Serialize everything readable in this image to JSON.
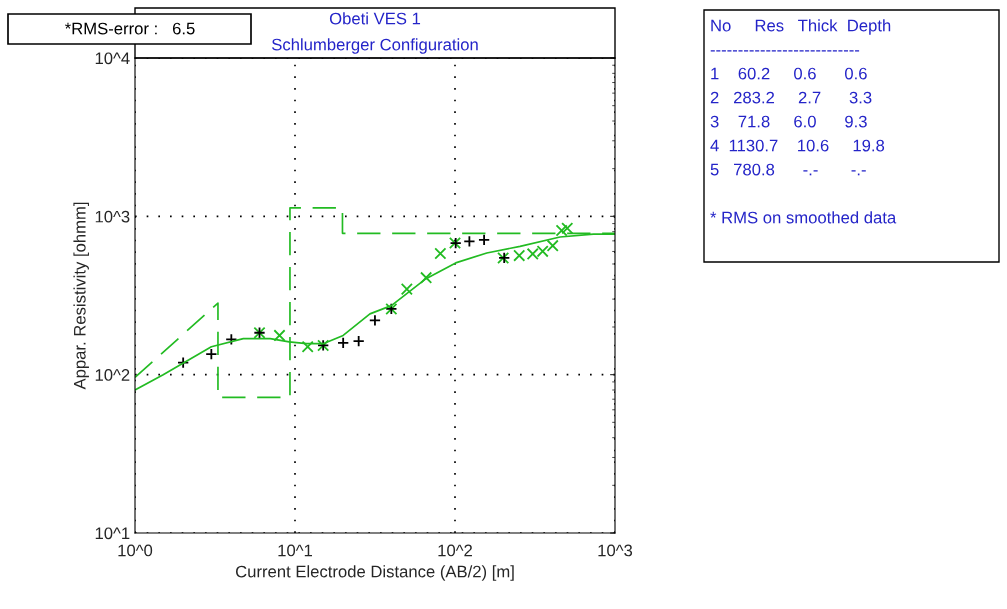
{
  "chart_data": {
    "type": "scatter",
    "title": "Obeti VES 1",
    "subtitle": "Schlumberger Configuration",
    "xlabel": "Current Electrode Distance (AB/2) [m]",
    "ylabel": "Appar. Resistivity [ohmm]",
    "log": "xy",
    "xlim": [
      1,
      1000
    ],
    "ylim": [
      10,
      10000
    ],
    "xticks": [
      {
        "value": 1,
        "label": "10^0"
      },
      {
        "value": 10,
        "label": "10^1"
      },
      {
        "value": 100,
        "label": "10^2"
      },
      {
        "value": 1000,
        "label": "10^3"
      }
    ],
    "yticks": [
      {
        "value": 10,
        "label": "10^1"
      },
      {
        "value": 100,
        "label": "10^2"
      },
      {
        "value": 1000,
        "label": "10^3"
      },
      {
        "value": 10000,
        "label": "10^4"
      }
    ],
    "grid": true,
    "series": [
      {
        "type": "line",
        "color": "#22bb22",
        "line_style": "dashed",
        "marker": "none",
        "x": [
          1,
          3.3,
          3.3,
          9.3,
          9.3,
          19.8,
          19.8,
          1000
        ],
        "values": [
          96,
          283.2,
          71.8,
          71.8,
          1130.7,
          1130.7,
          780.8,
          780.8
        ]
      },
      {
        "type": "line",
        "color": "#22bb22",
        "line_style": "solid",
        "marker": "none",
        "x": [
          1,
          1.5,
          3,
          4.75,
          7,
          9.2,
          11.8,
          15,
          20,
          29.4,
          40,
          65,
          101,
          158,
          255,
          453,
          733,
          1000
        ],
        "values": [
          80,
          100,
          150,
          169,
          169,
          161,
          157,
          157,
          177,
          242,
          273,
          400,
          508,
          587,
          646,
          740,
          772,
          772
        ]
      },
      {
        "color": "#22bb22",
        "marker": "x",
        "x": [
          6,
          8,
          12,
          15,
          40,
          50,
          66,
          81,
          100,
          200,
          252,
          306,
          353,
          408,
          464,
          503
        ],
        "values": [
          184,
          177,
          150,
          153,
          260,
          347,
          410,
          582,
          678,
          546,
          565,
          579,
          601,
          653,
          814,
          841
        ]
      },
      {
        "color": "#000000",
        "marker": "cross",
        "x": [
          2,
          3,
          4,
          6,
          15,
          20,
          25,
          31.6,
          40,
          101,
          123,
          152,
          203
        ],
        "values": [
          119,
          135,
          167,
          184,
          153,
          159,
          163,
          220,
          260,
          678,
          695,
          711,
          546
        ]
      }
    ],
    "annotations": [
      "*RMS-error :   6.5",
      "No     Res   Thick  Depth",
      "---------------------------",
      "1    60.2     0.6      0.6",
      "2   283.2     2.7      3.3",
      "3    71.8     6.0      9.3",
      "4  1130.7    10.6     19.8",
      "5   780.8      -.-       -.-",
      "* RMS on smoothed data"
    ]
  }
}
